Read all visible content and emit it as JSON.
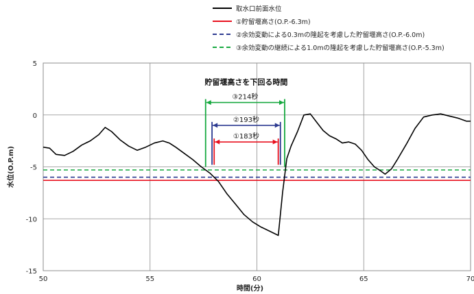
{
  "chart_data": {
    "type": "line",
    "xlabel": "時間(分)",
    "ylabel": "水位(O.P.m)",
    "xlim": [
      50,
      70
    ],
    "ylim": [
      -15,
      5
    ],
    "xticks": [
      50,
      55,
      60,
      65,
      70
    ],
    "yticks": [
      5,
      0,
      -5,
      -10,
      -15
    ],
    "grid": true,
    "legend_position": "top-right",
    "series": [
      {
        "name": "取水口前面水位",
        "color": "#000000",
        "style": "solid",
        "x": [
          50.0,
          50.3,
          50.6,
          51.0,
          51.4,
          51.8,
          52.2,
          52.6,
          52.9,
          53.2,
          53.6,
          54.0,
          54.4,
          54.8,
          55.2,
          55.6,
          55.9,
          56.2,
          56.6,
          57.0,
          57.4,
          57.8,
          58.2,
          58.6,
          59.0,
          59.4,
          59.8,
          60.2,
          60.6,
          61.0,
          61.2,
          61.4,
          61.6,
          61.9,
          62.2,
          62.5,
          62.8,
          63.1,
          63.4,
          63.7,
          64.0,
          64.3,
          64.6,
          64.9,
          65.2,
          65.5,
          65.8,
          66.0,
          66.3,
          66.6,
          67.0,
          67.4,
          67.8,
          68.2,
          68.6,
          69.0,
          69.4,
          69.8,
          70.0
        ],
        "y": [
          -3.1,
          -3.2,
          -3.8,
          -3.9,
          -3.5,
          -2.9,
          -2.5,
          -1.9,
          -1.2,
          -1.6,
          -2.4,
          -3.0,
          -3.4,
          -3.1,
          -2.7,
          -2.5,
          -2.7,
          -3.1,
          -3.7,
          -4.3,
          -5.0,
          -5.6,
          -6.4,
          -7.6,
          -8.6,
          -9.6,
          -10.3,
          -10.8,
          -11.2,
          -11.6,
          -7.5,
          -4.2,
          -3.0,
          -1.6,
          0.0,
          0.1,
          -0.7,
          -1.5,
          -2.0,
          -2.3,
          -2.7,
          -2.6,
          -2.8,
          -3.4,
          -4.3,
          -5.0,
          -5.4,
          -5.7,
          -5.2,
          -4.2,
          -2.8,
          -1.3,
          -0.2,
          0.0,
          0.1,
          -0.1,
          -0.3,
          -0.6,
          -0.6
        ]
      },
      {
        "name": "①貯留堰高さ(O.P.-6.3m)",
        "color": "#e8101e",
        "style": "solid",
        "x": [
          50,
          70
        ],
        "y": [
          -6.3,
          -6.3
        ]
      },
      {
        "name": "②余効変動による0.3mの隆起を考慮した貯留堰高さ(O.P.-6.0m)",
        "color": "#2b3990",
        "style": "dashed",
        "x": [
          50,
          70
        ],
        "y": [
          -6.0,
          -6.0
        ]
      },
      {
        "name": "③余効変動の継続による1.0mの隆起を考慮した貯留堰高さ(O.P.-5.3m)",
        "color": "#15a83e",
        "style": "dashed",
        "x": [
          50,
          70
        ],
        "y": [
          -5.3,
          -5.3
        ]
      }
    ],
    "annotations": {
      "title": "貯留堰高さを下回る時間",
      "intervals": [
        {
          "label": "③214秒",
          "color": "#15a83e",
          "start": 57.6,
          "end": 61.3,
          "level": 1.2
        },
        {
          "label": "②193秒",
          "color": "#2b3990",
          "start": 57.9,
          "end": 61.1,
          "level": -1.0
        },
        {
          "label": "①183秒",
          "color": "#e8101e",
          "start": 58.0,
          "end": 61.0,
          "level": -2.6
        }
      ]
    }
  }
}
